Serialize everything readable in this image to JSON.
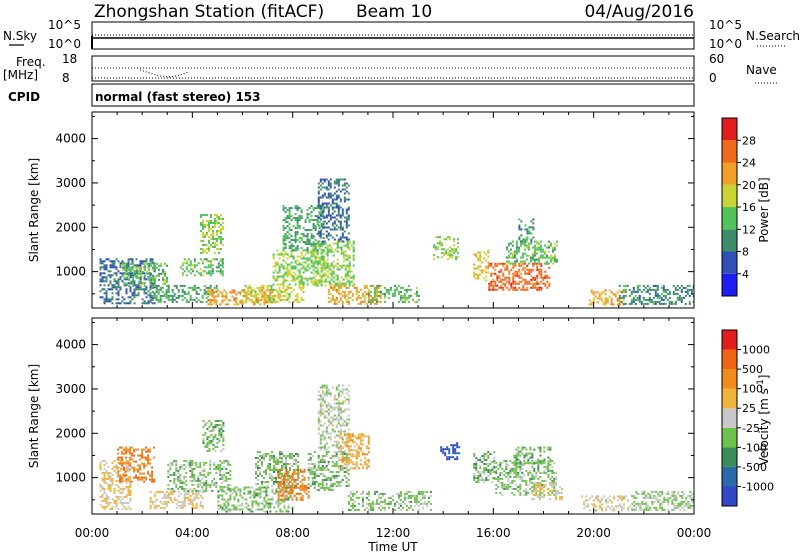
{
  "header": {
    "title": "Zhongshan Station (fitACF)",
    "beam": "Beam 10",
    "date": "04/Aug/2016"
  },
  "top_panel": {
    "left_label": "N.Sky",
    "left_ticks": [
      "10^5",
      "10^0"
    ],
    "right_ticks": [
      "10^5",
      "10^0"
    ],
    "right_label": "N.Search"
  },
  "freq_panel": {
    "left_label_1": "Freq.",
    "left_label_2": "[MHz]",
    "left_ticks": [
      "18",
      "8"
    ],
    "right_ticks": [
      "60",
      "0"
    ],
    "right_label": "Nave"
  },
  "cpid": {
    "label": "CPID",
    "text": "normal (fast stereo) 153"
  },
  "x_ticks": [
    "00:00",
    "04:00",
    "08:00",
    "12:00",
    "16:00",
    "20:00",
    "00:00"
  ],
  "y_ticks": [
    "1000",
    "2000",
    "3000",
    "4000"
  ],
  "colors": {
    "power": [
      "#1e1ef0",
      "#3050b8",
      "#3e8c6a",
      "#52c25a",
      "#c8d434",
      "#f0a028",
      "#f06a1e",
      "#e11e1e"
    ],
    "velocity": [
      "#3246c8",
      "#2a6aa8",
      "#3c8c5a",
      "#6ec24c",
      "#c8c8c8",
      "#f0b43c",
      "#f08c1e",
      "#f06414",
      "#e11e1e"
    ]
  },
  "chart_data": [
    {
      "type": "heatmap",
      "xlabel": "",
      "ylabel": "Slant Range [km]",
      "x_range": [
        "00:00",
        "00:00"
      ],
      "ylim": [
        180,
        4600
      ],
      "colorbar": {
        "label": "Power [dB]",
        "ticks": [
          "4",
          "8",
          "12",
          "16",
          "20",
          "24",
          "28"
        ],
        "range": [
          0,
          32
        ]
      },
      "regions": [
        {
          "x": [
            0.3,
            2.5
          ],
          "y": [
            300,
            1300
          ],
          "value": 8
        },
        {
          "x": [
            1.2,
            3.0
          ],
          "y": [
            700,
            1200
          ],
          "value": 14
        },
        {
          "x": [
            2.3,
            5.0
          ],
          "y": [
            300,
            700
          ],
          "value": 12
        },
        {
          "x": [
            3.5,
            5.2
          ],
          "y": [
            900,
            1300
          ],
          "value": 14
        },
        {
          "x": [
            4.3,
            5.2
          ],
          "y": [
            1400,
            2300
          ],
          "value": 16
        },
        {
          "x": [
            4.6,
            7.5
          ],
          "y": [
            250,
            600
          ],
          "value": 22
        },
        {
          "x": [
            6.0,
            8.4
          ],
          "y": [
            300,
            700
          ],
          "value": 18
        },
        {
          "x": [
            7.2,
            9.2
          ],
          "y": [
            700,
            1500
          ],
          "value": 16
        },
        {
          "x": [
            7.6,
            9.2
          ],
          "y": [
            1500,
            2500
          ],
          "value": 12
        },
        {
          "x": [
            8.8,
            10.4
          ],
          "y": [
            700,
            1700
          ],
          "value": 16
        },
        {
          "x": [
            9.0,
            10.2
          ],
          "y": [
            1700,
            3100
          ],
          "value": 8
        },
        {
          "x": [
            9.4,
            11.5
          ],
          "y": [
            250,
            700
          ],
          "value": 22
        },
        {
          "x": [
            11.0,
            13.0
          ],
          "y": [
            300,
            700
          ],
          "value": 14
        },
        {
          "x": [
            13.6,
            14.6
          ],
          "y": [
            1300,
            1800
          ],
          "value": 16
        },
        {
          "x": [
            15.2,
            15.8
          ],
          "y": [
            800,
            1500
          ],
          "value": 20
        },
        {
          "x": [
            15.8,
            18.2
          ],
          "y": [
            600,
            1200
          ],
          "value": 26
        },
        {
          "x": [
            16.5,
            18.5
          ],
          "y": [
            1200,
            1700
          ],
          "value": 14
        },
        {
          "x": [
            17.0,
            17.6
          ],
          "y": [
            1700,
            2200
          ],
          "value": 10
        },
        {
          "x": [
            19.8,
            21.2
          ],
          "y": [
            250,
            600
          ],
          "value": 22
        },
        {
          "x": [
            21.0,
            24.0
          ],
          "y": [
            250,
            700
          ],
          "value": 10
        }
      ]
    },
    {
      "type": "heatmap",
      "xlabel": "Time UT",
      "ylabel": "Slant Range [km]",
      "x_range": [
        "00:00",
        "00:00"
      ],
      "ylim": [
        180,
        4600
      ],
      "colorbar": {
        "label": "Velocity [m s^-1]",
        "ticks": [
          "-1000",
          "-500",
          "-100",
          "-25",
          "25",
          "100",
          "500",
          "1000"
        ],
        "range": [
          -1500,
          1500
        ]
      },
      "regions": [
        {
          "x": [
            0.3,
            1.5
          ],
          "y": [
            300,
            1400
          ],
          "value": 200
        },
        {
          "x": [
            1.0,
            2.5
          ],
          "y": [
            900,
            1700
          ],
          "value": 800
        },
        {
          "x": [
            2.3,
            4.5
          ],
          "y": [
            300,
            700
          ],
          "value": 150
        },
        {
          "x": [
            3.0,
            5.5
          ],
          "y": [
            700,
            1400
          ],
          "value": -300
        },
        {
          "x": [
            4.4,
            5.2
          ],
          "y": [
            1600,
            2300
          ],
          "value": -300
        },
        {
          "x": [
            5.0,
            8.0
          ],
          "y": [
            250,
            800
          ],
          "value": -300
        },
        {
          "x": [
            6.5,
            8.2
          ],
          "y": [
            800,
            1600
          ],
          "value": -300
        },
        {
          "x": [
            7.4,
            8.6
          ],
          "y": [
            500,
            1200
          ],
          "value": 800
        },
        {
          "x": [
            8.6,
            10.2
          ],
          "y": [
            700,
            1600
          ],
          "value": -300
        },
        {
          "x": [
            9.0,
            10.2
          ],
          "y": [
            1600,
            3100
          ],
          "value": -80
        },
        {
          "x": [
            9.8,
            11.0
          ],
          "y": [
            1200,
            2000
          ],
          "value": 400
        },
        {
          "x": [
            10.2,
            13.5
          ],
          "y": [
            250,
            700
          ],
          "value": -300
        },
        {
          "x": [
            13.8,
            14.6
          ],
          "y": [
            1400,
            1800
          ],
          "value": -1200
        },
        {
          "x": [
            15.2,
            16.0
          ],
          "y": [
            900,
            1600
          ],
          "value": -300
        },
        {
          "x": [
            16.0,
            18.5
          ],
          "y": [
            600,
            1400
          ],
          "value": -300
        },
        {
          "x": [
            16.8,
            18.3
          ],
          "y": [
            1300,
            1700
          ],
          "value": -400
        },
        {
          "x": [
            17.5,
            18.7
          ],
          "y": [
            500,
            900
          ],
          "value": 200
        },
        {
          "x": [
            19.5,
            21.5
          ],
          "y": [
            250,
            600
          ],
          "value": 60
        },
        {
          "x": [
            21.5,
            24.0
          ],
          "y": [
            250,
            700
          ],
          "value": -200
        }
      ]
    }
  ]
}
